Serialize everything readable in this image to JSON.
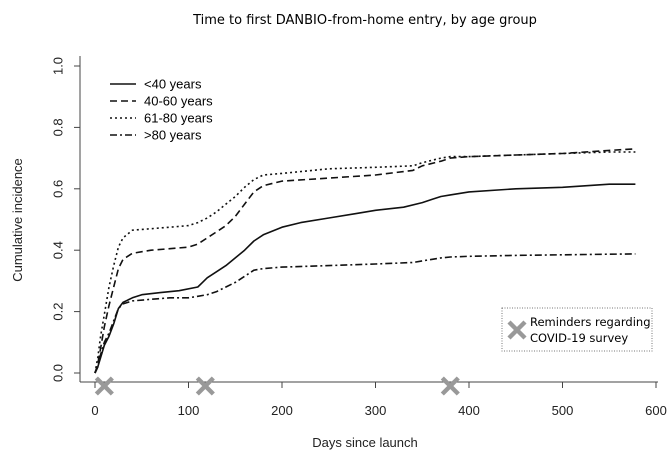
{
  "chart_data": {
    "type": "line",
    "title": "Time to first DANBIO-from-home entry, by age group",
    "xlabel": "Days since launch",
    "ylabel": "Cumulative incidence",
    "xlim": [
      0,
      600
    ],
    "ylim": [
      0,
      1.0
    ],
    "x_ticks": [
      0,
      100,
      200,
      300,
      400,
      500,
      600
    ],
    "x_tick_labels": [
      "0",
      "100",
      "200",
      "300",
      "400",
      "500",
      "600"
    ],
    "y_ticks": [
      0,
      0.2,
      0.4,
      0.6,
      0.8,
      1.0
    ],
    "y_tick_labels": [
      "0.0",
      "0.2",
      "0.4",
      "0.6",
      "0.8",
      "1.0"
    ],
    "grid": false,
    "legend": {
      "placement": "top-left"
    },
    "series": [
      {
        "name": "<40 years",
        "dash": "solid",
        "points": [
          [
            0,
            0
          ],
          [
            3,
            0.02
          ],
          [
            6,
            0.05
          ],
          [
            10,
            0.09
          ],
          [
            15,
            0.12
          ],
          [
            20,
            0.16
          ],
          [
            25,
            0.21
          ],
          [
            30,
            0.23
          ],
          [
            40,
            0.245
          ],
          [
            50,
            0.255
          ],
          [
            70,
            0.262
          ],
          [
            90,
            0.268
          ],
          [
            110,
            0.28
          ],
          [
            115,
            0.295
          ],
          [
            120,
            0.31
          ],
          [
            130,
            0.33
          ],
          [
            140,
            0.35
          ],
          [
            150,
            0.375
          ],
          [
            160,
            0.4
          ],
          [
            170,
            0.43
          ],
          [
            180,
            0.45
          ],
          [
            200,
            0.475
          ],
          [
            220,
            0.49
          ],
          [
            250,
            0.505
          ],
          [
            280,
            0.52
          ],
          [
            300,
            0.53
          ],
          [
            330,
            0.54
          ],
          [
            350,
            0.555
          ],
          [
            360,
            0.565
          ],
          [
            370,
            0.575
          ],
          [
            380,
            0.58
          ],
          [
            400,
            0.59
          ],
          [
            450,
            0.6
          ],
          [
            500,
            0.605
          ],
          [
            550,
            0.615
          ],
          [
            578,
            0.615
          ]
        ]
      },
      {
        "name": "40-60 years",
        "dash": "dashed",
        "points": [
          [
            0,
            0
          ],
          [
            3,
            0.03
          ],
          [
            6,
            0.08
          ],
          [
            10,
            0.15
          ],
          [
            15,
            0.22
          ],
          [
            20,
            0.28
          ],
          [
            25,
            0.34
          ],
          [
            30,
            0.37
          ],
          [
            35,
            0.38
          ],
          [
            40,
            0.39
          ],
          [
            60,
            0.4
          ],
          [
            80,
            0.405
          ],
          [
            100,
            0.41
          ],
          [
            110,
            0.42
          ],
          [
            120,
            0.44
          ],
          [
            130,
            0.46
          ],
          [
            140,
            0.48
          ],
          [
            150,
            0.51
          ],
          [
            160,
            0.55
          ],
          [
            170,
            0.59
          ],
          [
            180,
            0.61
          ],
          [
            200,
            0.625
          ],
          [
            250,
            0.635
          ],
          [
            300,
            0.645
          ],
          [
            340,
            0.66
          ],
          [
            350,
            0.675
          ],
          [
            370,
            0.69
          ],
          [
            380,
            0.7
          ],
          [
            400,
            0.705
          ],
          [
            450,
            0.71
          ],
          [
            500,
            0.715
          ],
          [
            550,
            0.725
          ],
          [
            578,
            0.73
          ]
        ]
      },
      {
        "name": "61-80 years",
        "dash": "dotted",
        "points": [
          [
            0,
            0
          ],
          [
            3,
            0.05
          ],
          [
            6,
            0.12
          ],
          [
            10,
            0.19
          ],
          [
            15,
            0.28
          ],
          [
            20,
            0.35
          ],
          [
            25,
            0.41
          ],
          [
            30,
            0.44
          ],
          [
            40,
            0.465
          ],
          [
            60,
            0.47
          ],
          [
            80,
            0.475
          ],
          [
            100,
            0.48
          ],
          [
            110,
            0.49
          ],
          [
            120,
            0.505
          ],
          [
            130,
            0.525
          ],
          [
            140,
            0.55
          ],
          [
            150,
            0.575
          ],
          [
            160,
            0.605
          ],
          [
            170,
            0.63
          ],
          [
            180,
            0.645
          ],
          [
            200,
            0.65
          ],
          [
            250,
            0.665
          ],
          [
            300,
            0.67
          ],
          [
            340,
            0.675
          ],
          [
            350,
            0.685
          ],
          [
            370,
            0.7
          ],
          [
            380,
            0.705
          ],
          [
            400,
            0.705
          ],
          [
            450,
            0.71
          ],
          [
            500,
            0.715
          ],
          [
            550,
            0.72
          ],
          [
            578,
            0.72
          ]
        ]
      },
      {
        "name": ">80 years",
        "dash": "dashdot",
        "points": [
          [
            0,
            0
          ],
          [
            3,
            0.02
          ],
          [
            6,
            0.06
          ],
          [
            10,
            0.1
          ],
          [
            15,
            0.13
          ],
          [
            20,
            0.17
          ],
          [
            25,
            0.21
          ],
          [
            30,
            0.225
          ],
          [
            40,
            0.235
          ],
          [
            60,
            0.24
          ],
          [
            80,
            0.245
          ],
          [
            100,
            0.245
          ],
          [
            110,
            0.25
          ],
          [
            120,
            0.255
          ],
          [
            130,
            0.265
          ],
          [
            140,
            0.28
          ],
          [
            150,
            0.295
          ],
          [
            160,
            0.315
          ],
          [
            170,
            0.335
          ],
          [
            180,
            0.34
          ],
          [
            200,
            0.345
          ],
          [
            250,
            0.35
          ],
          [
            300,
            0.355
          ],
          [
            340,
            0.36
          ],
          [
            350,
            0.365
          ],
          [
            370,
            0.375
          ],
          [
            380,
            0.378
          ],
          [
            400,
            0.38
          ],
          [
            450,
            0.383
          ],
          [
            500,
            0.385
          ],
          [
            550,
            0.387
          ],
          [
            578,
            0.388
          ]
        ]
      }
    ],
    "markers": {
      "label": "Reminders regarding COVID-19 survey",
      "label_lines": [
        "Reminders regarding",
        "COVID-19 survey"
      ],
      "x": [
        10,
        118,
        380
      ],
      "color": "#999999",
      "icon": "x-marker-icon"
    },
    "annotation_placement": "bottom-right"
  }
}
